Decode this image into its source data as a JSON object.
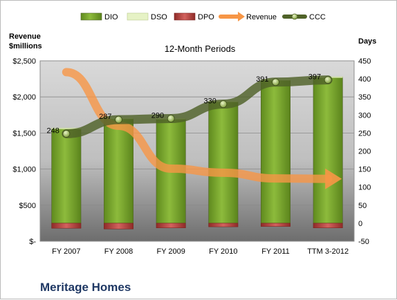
{
  "chart_data": {
    "type": "bar",
    "company": "Meritage Homes",
    "subtitle": "12-Month Periods",
    "left_axis_title": [
      "Revenue",
      "$millions"
    ],
    "right_axis_title": "Days",
    "categories": [
      "FY 2007",
      "FY 2008",
      "FY 2009",
      "FY 2010",
      "FY 2011",
      "TTM 3-2012"
    ],
    "left_axis": {
      "min": 0,
      "max": 2500,
      "ticks": [
        0,
        500,
        1000,
        1500,
        2000,
        2500
      ],
      "tick_labels": [
        "$-",
        "$500",
        "$1,000",
        "$1,500",
        "$2,000",
        "$2,500"
      ]
    },
    "right_axis": {
      "min": -50,
      "max": 450,
      "ticks": [
        -50,
        0,
        50,
        100,
        150,
        200,
        250,
        300,
        350,
        400,
        450
      ],
      "tick_labels": [
        "-50",
        "0",
        "50",
        "100",
        "150",
        "200",
        "250",
        "300",
        "350",
        "400",
        "450"
      ]
    },
    "legend": {
      "position": "top",
      "items": [
        "DIO",
        "DSO",
        "DPO",
        "Revenue",
        "CCC"
      ]
    },
    "series": [
      {
        "name": "DIO",
        "axis": "right",
        "kind": "bar",
        "values": [
          262,
          290,
          290,
          338,
          398,
          405
        ]
      },
      {
        "name": "DSO",
        "axis": "right",
        "kind": "bar",
        "values": [
          2,
          2,
          1,
          1,
          1,
          1
        ]
      },
      {
        "name": "DPO",
        "axis": "right",
        "kind": "bar",
        "values": [
          -14,
          -16,
          -13,
          -10,
          -9,
          -13
        ]
      },
      {
        "name": "Revenue",
        "axis": "left",
        "kind": "line-arrow",
        "values": [
          2343,
          1600,
          1006,
          950,
          870,
          865
        ]
      },
      {
        "name": "CCC",
        "axis": "right",
        "kind": "line",
        "values": [
          248,
          287,
          290,
          330,
          391,
          397
        ],
        "labels": [
          "248",
          "287",
          "290",
          "330",
          "391",
          "397"
        ]
      }
    ],
    "colors": {
      "DIO": "#77a52e",
      "DSO": "#e6f2c5",
      "DPO": "#c0504d",
      "Revenue": "#f79646",
      "CCC": "#4f6228"
    }
  }
}
